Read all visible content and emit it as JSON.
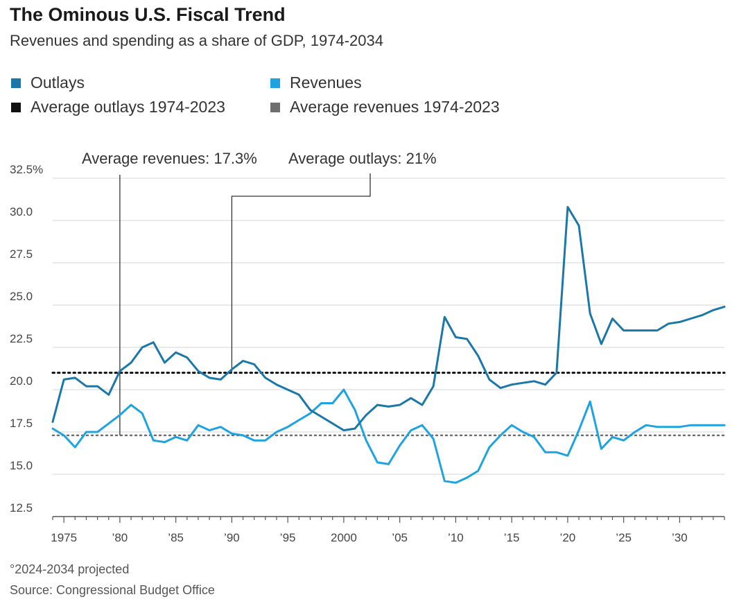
{
  "title": "The Ominous U.S. Fiscal Trend",
  "subtitle": "Revenues and spending as a share of GDP, 1974-2034",
  "legend": {
    "outlays": "Outlays",
    "revenues": "Revenues",
    "avg_outlays": "Average outlays 1974-2023",
    "avg_revenues": "Average revenues 1974-2023"
  },
  "footnote": "°2024-2034 projected",
  "source": "Source: Congressional Budget Office",
  "colors": {
    "outlays": "#1a78a8",
    "revenues": "#1ca3e0",
    "avg_outlays": "#111111",
    "avg_revenues": "#6e6e6e",
    "grid": "#e3e3e3"
  },
  "chart_data": {
    "type": "line",
    "title": "The Ominous U.S. Fiscal Trend",
    "subtitle": "Revenues and spending as a share of GDP, 1974-2034",
    "xlabel": "",
    "ylabel": "",
    "xlim": [
      1974,
      2034
    ],
    "ylim": [
      12.5,
      32.5
    ],
    "y_ticks": [
      {
        "value": 32.5,
        "label": "32.5%"
      },
      {
        "value": 30.0,
        "label": "30.0"
      },
      {
        "value": 27.5,
        "label": "27.5"
      },
      {
        "value": 25.0,
        "label": "25.0"
      },
      {
        "value": 22.5,
        "label": "22.5"
      },
      {
        "value": 20.0,
        "label": "20.0"
      },
      {
        "value": 17.5,
        "label": "17.5"
      },
      {
        "value": 15.0,
        "label": "15.0"
      },
      {
        "value": 12.5,
        "label": "12.5"
      }
    ],
    "x_ticks": [
      {
        "value": 1975,
        "label": "1975"
      },
      {
        "value": 1980,
        "label": "’80"
      },
      {
        "value": 1985,
        "label": "’85"
      },
      {
        "value": 1990,
        "label": "’90"
      },
      {
        "value": 1995,
        "label": "’95"
      },
      {
        "value": 2000,
        "label": "2000"
      },
      {
        "value": 2005,
        "label": "’05"
      },
      {
        "value": 2010,
        "label": "’10"
      },
      {
        "value": 2015,
        "label": "’15"
      },
      {
        "value": 2020,
        "label": "’20"
      },
      {
        "value": 2025,
        "label": "’25"
      },
      {
        "value": 2030,
        "label": "’30"
      }
    ],
    "grid": true,
    "legend_position": "top-left",
    "series": [
      {
        "name": "Outlays",
        "x": [
          1974,
          1975,
          1976,
          1977,
          1978,
          1979,
          1980,
          1981,
          1982,
          1983,
          1984,
          1985,
          1986,
          1987,
          1988,
          1989,
          1990,
          1991,
          1992,
          1993,
          1994,
          1995,
          1996,
          1997,
          1998,
          1999,
          2000,
          2001,
          2002,
          2003,
          2004,
          2005,
          2006,
          2007,
          2008,
          2009,
          2010,
          2011,
          2012,
          2013,
          2014,
          2015,
          2016,
          2017,
          2018,
          2019,
          2020,
          2021,
          2022,
          2023,
          2024,
          2025,
          2026,
          2027,
          2028,
          2029,
          2030,
          2031,
          2032,
          2033,
          2034
        ],
        "values": [
          18.1,
          20.6,
          20.7,
          20.2,
          20.2,
          19.7,
          21.1,
          21.6,
          22.5,
          22.8,
          21.6,
          22.2,
          21.9,
          21.1,
          20.7,
          20.6,
          21.2,
          21.7,
          21.5,
          20.7,
          20.3,
          20.0,
          19.7,
          18.8,
          18.4,
          18.0,
          17.6,
          17.7,
          18.5,
          19.1,
          19.0,
          19.1,
          19.5,
          19.1,
          20.2,
          24.3,
          23.1,
          23.0,
          22.0,
          20.6,
          20.1,
          20.3,
          20.4,
          20.5,
          20.3,
          21.0,
          30.8,
          29.7,
          24.5,
          22.7,
          24.2,
          23.5,
          23.5,
          23.5,
          23.5,
          23.9,
          24.0,
          24.2,
          24.4,
          24.7,
          24.9
        ]
      },
      {
        "name": "Revenues",
        "x": [
          1974,
          1975,
          1976,
          1977,
          1978,
          1979,
          1980,
          1981,
          1982,
          1983,
          1984,
          1985,
          1986,
          1987,
          1988,
          1989,
          1990,
          1991,
          1992,
          1993,
          1994,
          1995,
          1996,
          1997,
          1998,
          1999,
          2000,
          2001,
          2002,
          2003,
          2004,
          2005,
          2006,
          2007,
          2008,
          2009,
          2010,
          2011,
          2012,
          2013,
          2014,
          2015,
          2016,
          2017,
          2018,
          2019,
          2020,
          2021,
          2022,
          2023,
          2024,
          2025,
          2026,
          2027,
          2028,
          2029,
          2030,
          2031,
          2032,
          2033,
          2034
        ],
        "values": [
          17.7,
          17.3,
          16.6,
          17.5,
          17.5,
          18.0,
          18.5,
          19.1,
          18.6,
          17.0,
          16.9,
          17.2,
          17.0,
          17.9,
          17.6,
          17.8,
          17.4,
          17.3,
          17.0,
          17.0,
          17.5,
          17.8,
          18.2,
          18.6,
          19.2,
          19.2,
          20.0,
          18.8,
          17.0,
          15.7,
          15.6,
          16.7,
          17.6,
          17.9,
          17.1,
          14.6,
          14.5,
          14.8,
          15.2,
          16.6,
          17.3,
          17.9,
          17.5,
          17.2,
          16.3,
          16.3,
          16.1,
          17.6,
          19.3,
          16.5,
          17.2,
          17.0,
          17.5,
          17.9,
          17.8,
          17.8,
          17.8,
          17.9,
          17.9,
          17.9,
          17.9
        ]
      },
      {
        "name": "Average outlays 1974-2023",
        "value": 21.0
      },
      {
        "name": "Average revenues 1974-2023",
        "value": 17.3
      }
    ],
    "annotations": [
      {
        "text": "Average revenues: 17.3%",
        "x": 1980,
        "y": 17.3
      },
      {
        "text": "Average outlays: 21%",
        "x": 1990,
        "y": 21.0
      }
    ]
  }
}
